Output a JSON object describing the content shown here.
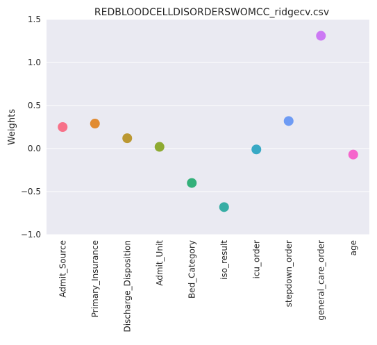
{
  "chart_data": {
    "type": "scatter",
    "title": "REDBLOODCELLDISORDERSWOMCC_ridgecv.csv",
    "xlabel": "",
    "ylabel": "Weights",
    "ylim": [
      -1.0,
      1.5
    ],
    "yticks": [
      "−1.0",
      "−0.5",
      "0.0",
      "0.5",
      "1.0",
      "1.5"
    ],
    "ytick_values": [
      -1.0,
      -0.5,
      0.0,
      0.5,
      1.0,
      1.5
    ],
    "grid": true,
    "categories": [
      "Admit_Source",
      "Primary_Insurance",
      "Discharge_Disposition",
      "Admit_Unit",
      "Bed_Category",
      "iso_result",
      "icu_order",
      "stepdown_order",
      "general_care_order",
      "age"
    ],
    "values": [
      0.25,
      0.29,
      0.12,
      0.02,
      -0.4,
      -0.68,
      -0.01,
      0.32,
      1.31,
      -0.07
    ],
    "colors": [
      "#f77189",
      "#e18b31",
      "#bb9832",
      "#8eaa32",
      "#33b07a",
      "#36ada4",
      "#38a9c5",
      "#6e9bf4",
      "#cc79f4",
      "#f565cc"
    ]
  }
}
